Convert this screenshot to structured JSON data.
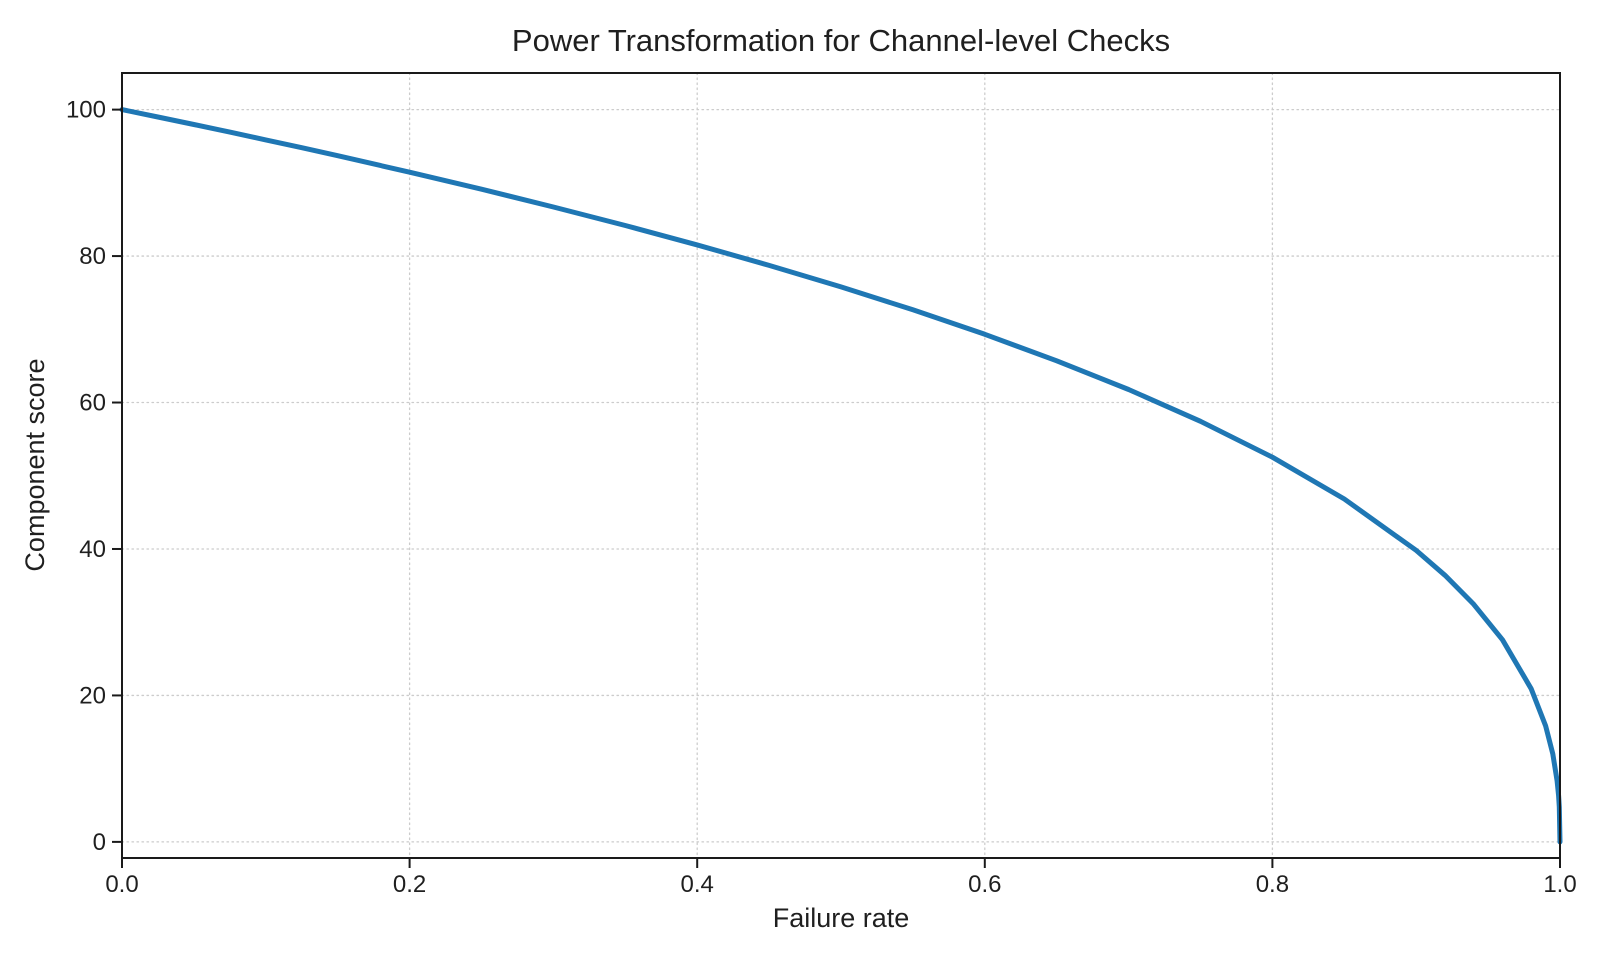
{
  "figure": {
    "title": "Power Transformation for Channel-level Checks",
    "xlabel": "Failure rate",
    "ylabel": "Component score",
    "background": "#ffffff",
    "text_color": "#1f1f1f",
    "spine_color": "#1a1a1a"
  },
  "chart_data": {
    "type": "line",
    "title": "Power Transformation for Channel-level Checks",
    "xlabel": "Failure rate",
    "ylabel": "Component score",
    "xlim": [
      0,
      1
    ],
    "ylim": [
      0,
      100
    ],
    "display_xlim": [
      0,
      1
    ],
    "display_ylim": [
      -2.2,
      105
    ],
    "grid": true,
    "grid_style": "dotted",
    "grid_color": "#cccccc",
    "legend_position": "none",
    "x_ticks": [
      0.0,
      0.2,
      0.4,
      0.6,
      0.8,
      1.0
    ],
    "x_tick_labels": [
      "0.0",
      "0.2",
      "0.4",
      "0.6",
      "0.8",
      "1.0"
    ],
    "y_ticks": [
      0,
      20,
      40,
      60,
      80,
      100
    ],
    "y_tick_labels": [
      "0",
      "20",
      "40",
      "60",
      "80",
      "100"
    ],
    "series": [
      {
        "name": "Component score",
        "color": "#1f77b4",
        "line_width": 5,
        "x": [
          0,
          0.025,
          0.05,
          0.075,
          0.1,
          0.125,
          0.15,
          0.2,
          0.25,
          0.3,
          0.35,
          0.4,
          0.45,
          0.5,
          0.55,
          0.6,
          0.65,
          0.7,
          0.75,
          0.8,
          0.85,
          0.9,
          0.92,
          0.94,
          0.96,
          0.98,
          0.99,
          0.995,
          0.998,
          0.999,
          0.9995,
          1.0
        ],
        "y": [
          100,
          98.99,
          97.97,
          96.93,
          95.87,
          94.8,
          93.71,
          91.46,
          89.13,
          86.7,
          84.17,
          81.52,
          78.73,
          75.79,
          72.66,
          69.32,
          65.7,
          61.78,
          57.43,
          52.53,
          46.82,
          39.81,
          36.41,
          32.45,
          27.6,
          20.91,
          15.85,
          12.01,
          8.33,
          6.31,
          4.78,
          0
        ]
      }
    ]
  }
}
